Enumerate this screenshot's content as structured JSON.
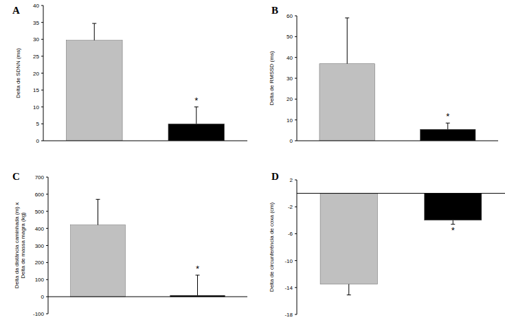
{
  "chart_data": [
    {
      "type": "bar",
      "title": "A",
      "ylabel": "Delta de SDNN (ms)",
      "categories": [
        null,
        null
      ],
      "values": [
        29.7,
        5.0
      ],
      "errors": [
        5.0,
        5.0
      ],
      "colors": [
        "#c0c0c0",
        "#000000"
      ],
      "ylim": [
        0,
        40
      ],
      "yticks": [
        0,
        5,
        10,
        15,
        20,
        25,
        30,
        35,
        40
      ],
      "grid": false,
      "annotations": [
        {
          "index": 1,
          "text": "*"
        }
      ]
    },
    {
      "type": "bar",
      "title": "B",
      "ylabel": "Delta de RMSSD (ms)",
      "categories": [
        null,
        null
      ],
      "values": [
        37,
        5.5
      ],
      "errors": [
        22,
        3
      ],
      "colors": [
        "#c0c0c0",
        "#000000"
      ],
      "ylim": [
        0,
        60
      ],
      "yticks": [
        0,
        10,
        20,
        30,
        40,
        50,
        60
      ],
      "grid": false,
      "annotations": [
        {
          "index": 1,
          "text": "*"
        }
      ]
    },
    {
      "type": "bar",
      "title": "C",
      "ylabel": "Delta da distância caminhada (m) x\nDelta de massa magra (kg)",
      "categories": [
        null,
        null
      ],
      "values": [
        420,
        8
      ],
      "errors": [
        150,
        118
      ],
      "colors": [
        "#c0c0c0",
        "#000000"
      ],
      "ylim": [
        -100,
        700
      ],
      "yticks": [
        -100,
        0,
        100,
        200,
        300,
        400,
        500,
        600,
        700
      ],
      "grid": false,
      "annotations": [
        {
          "index": 1,
          "text": "*"
        }
      ]
    },
    {
      "type": "bar",
      "title": "D",
      "ylabel": "Delta de circunferência de coxa (cm)",
      "categories": [
        null,
        null
      ],
      "values": [
        -13.5,
        -4.0
      ],
      "errors": [
        1.6,
        0.6
      ],
      "colors": [
        "#c0c0c0",
        "#000000"
      ],
      "ylim": [
        -18,
        2
      ],
      "yticks": [
        -18,
        -14,
        -10,
        -6,
        -2,
        2
      ],
      "grid": false,
      "annotations": [
        {
          "index": 1,
          "text": "*"
        }
      ]
    }
  ]
}
